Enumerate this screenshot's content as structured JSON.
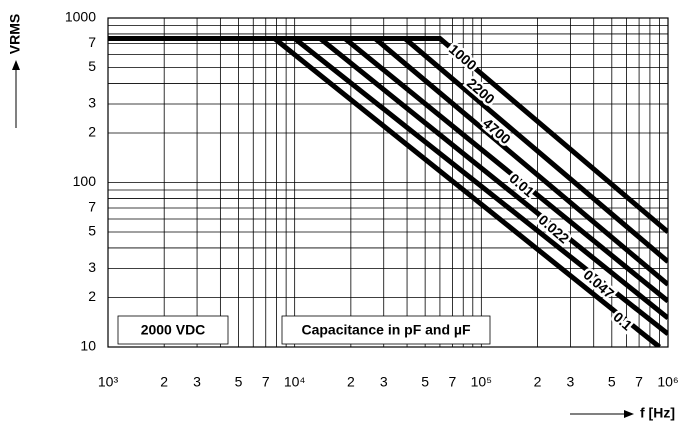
{
  "chart_data": {
    "type": "line",
    "log_x": true,
    "log_y": true,
    "grid": true,
    "color": "#000000",
    "ylabel": "VRMS",
    "xlabel": "f [Hz]",
    "annotations": [
      "2000 VDC",
      "Capacitance in pF and µF"
    ],
    "xlim": [
      1000,
      1000000
    ],
    "ylim": [
      10,
      1000
    ],
    "xticks": [
      {
        "value": 1000,
        "label": "10³"
      },
      {
        "value": 2000,
        "label": "2"
      },
      {
        "value": 3000,
        "label": "3"
      },
      {
        "value": 4000,
        "label": null
      },
      {
        "value": 5000,
        "label": "5"
      },
      {
        "value": 6000,
        "label": null
      },
      {
        "value": 7000,
        "label": "7"
      },
      {
        "value": 8000,
        "label": null
      },
      {
        "value": 9000,
        "label": null
      },
      {
        "value": 10000,
        "label": "10⁴"
      },
      {
        "value": 20000,
        "label": "2"
      },
      {
        "value": 30000,
        "label": "3"
      },
      {
        "value": 40000,
        "label": null
      },
      {
        "value": 50000,
        "label": "5"
      },
      {
        "value": 60000,
        "label": null
      },
      {
        "value": 70000,
        "label": "7"
      },
      {
        "value": 80000,
        "label": null
      },
      {
        "value": 90000,
        "label": null
      },
      {
        "value": 100000,
        "label": "10⁵"
      },
      {
        "value": 200000,
        "label": "2"
      },
      {
        "value": 300000,
        "label": "3"
      },
      {
        "value": 400000,
        "label": null
      },
      {
        "value": 500000,
        "label": "5"
      },
      {
        "value": 600000,
        "label": null
      },
      {
        "value": 700000,
        "label": "7"
      },
      {
        "value": 800000,
        "label": null
      },
      {
        "value": 900000,
        "label": null
      },
      {
        "value": 1000000,
        "label": "10⁶"
      }
    ],
    "yticks": [
      10,
      {
        "value": 20,
        "label": "2"
      },
      {
        "value": 30,
        "label": "3"
      },
      {
        "value": 40,
        "label": null
      },
      {
        "value": 50,
        "label": "5"
      },
      {
        "value": 60,
        "label": null
      },
      {
        "value": 70,
        "label": "7"
      },
      {
        "value": 80,
        "label": null
      },
      {
        "value": 90,
        "label": null
      },
      100,
      {
        "value": 200,
        "label": "2"
      },
      {
        "value": 300,
        "label": "3"
      },
      {
        "value": 400,
        "label": null
      },
      {
        "value": 500,
        "label": "5"
      },
      {
        "value": 600,
        "label": null
      },
      {
        "value": 700,
        "label": "7"
      },
      {
        "value": 800,
        "label": null
      },
      {
        "value": 900,
        "label": null
      },
      1000
    ],
    "series": [
      {
        "name": "1000",
        "x": [
          1000,
          60000,
          1000000
        ],
        "values": [
          750,
          750,
          50
        ]
      },
      {
        "name": "2200",
        "x": [
          1000,
          39000,
          1000000
        ],
        "values": [
          750,
          750,
          33
        ]
      },
      {
        "name": "4700",
        "x": [
          1000,
          27000,
          1000000
        ],
        "values": [
          750,
          750,
          24
        ]
      },
      {
        "name": "0.01",
        "x": [
          1000,
          18600,
          1000000
        ],
        "values": [
          750,
          750,
          19
        ]
      },
      {
        "name": "0.022",
        "x": [
          1000,
          13700,
          1000000
        ],
        "values": [
          750,
          750,
          15
        ]
      },
      {
        "name": "0.047",
        "x": [
          1000,
          10000,
          1000000
        ],
        "values": [
          750,
          750,
          12
        ]
      },
      {
        "name": "0.1",
        "x": [
          1000,
          7800,
          900000
        ],
        "values": [
          750,
          750,
          10
        ]
      }
    ]
  }
}
